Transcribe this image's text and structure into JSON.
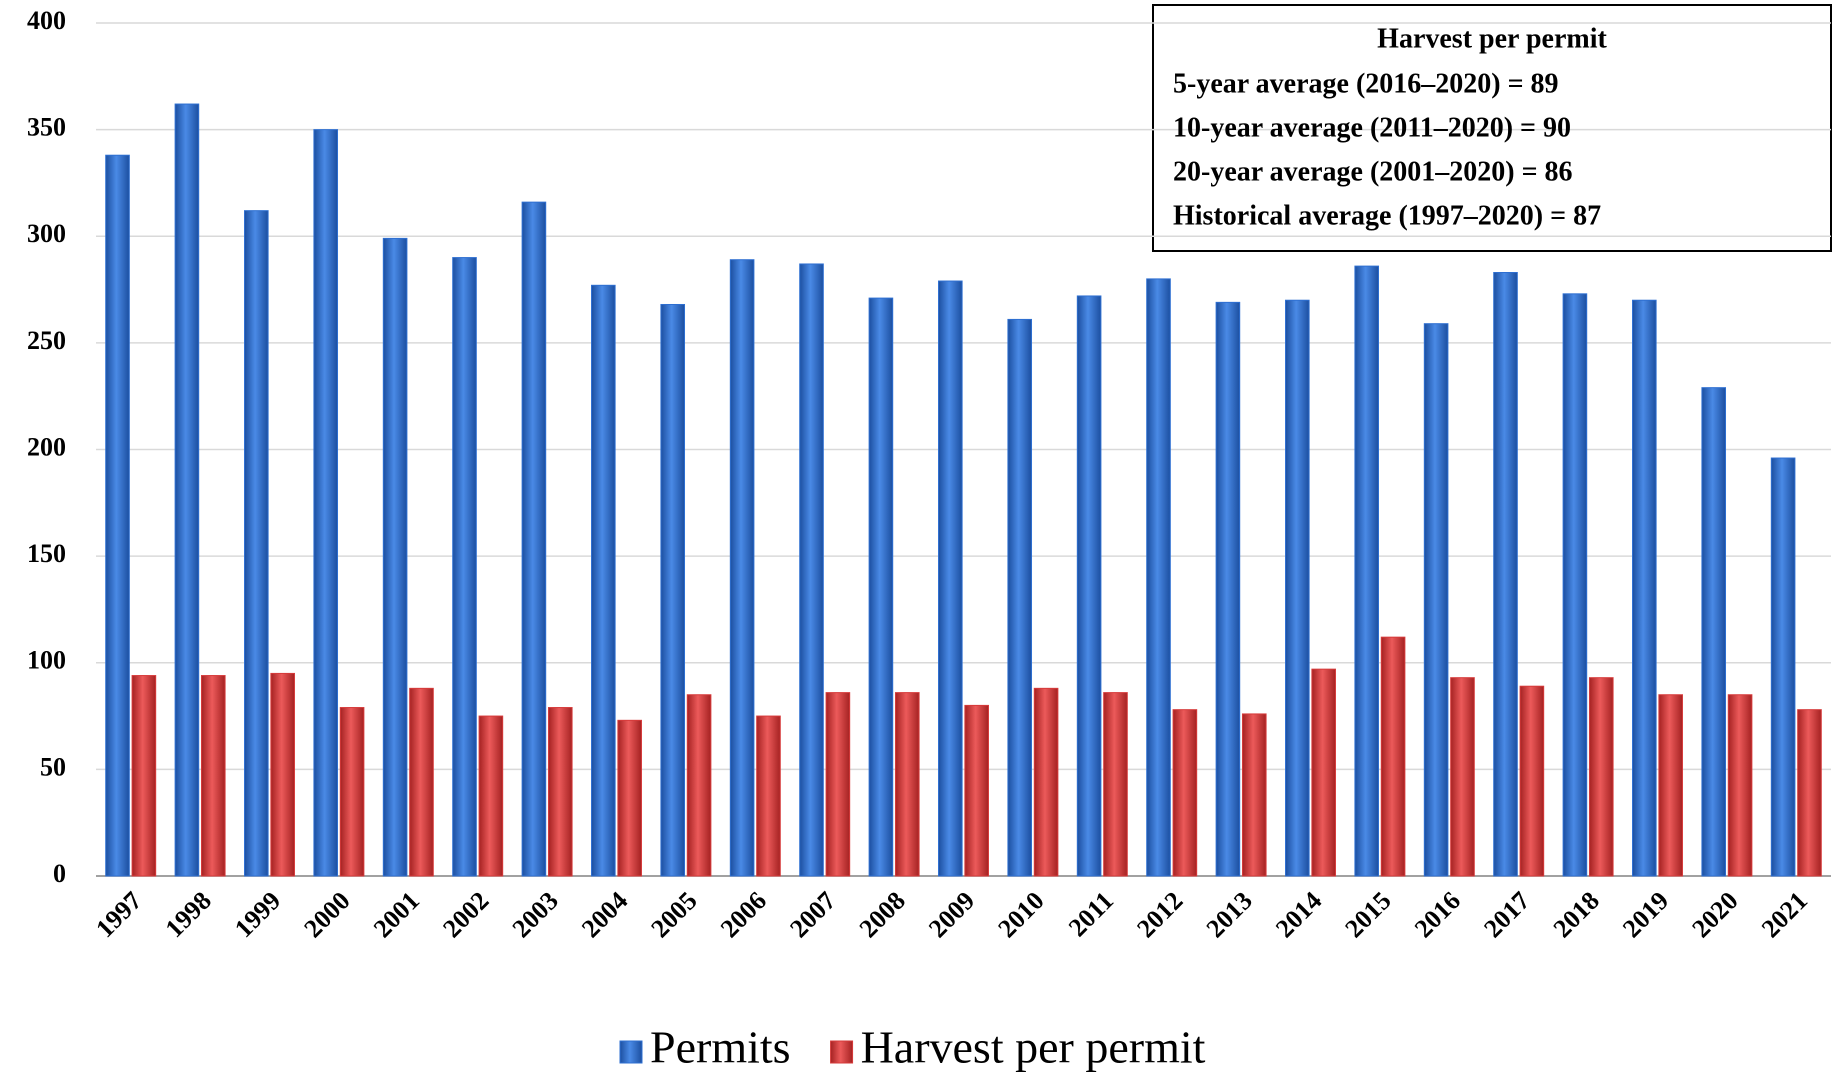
{
  "chart_data": {
    "type": "bar",
    "categories": [
      "1997",
      "1998",
      "1999",
      "2000",
      "2001",
      "2002",
      "2003",
      "2004",
      "2005",
      "2006",
      "2007",
      "2008",
      "2009",
      "2010",
      "2011",
      "2012",
      "2013",
      "2014",
      "2015",
      "2016",
      "2017",
      "2018",
      "2019",
      "2020",
      "2021"
    ],
    "series": [
      {
        "name": "Permits",
        "color": "#2e6fd1",
        "values": [
          338,
          362,
          312,
          350,
          299,
          290,
          316,
          277,
          268,
          289,
          287,
          271,
          279,
          261,
          272,
          280,
          269,
          270,
          286,
          259,
          283,
          273,
          270,
          229,
          196
        ]
      },
      {
        "name": "Harvest per permit",
        "color": "#d63a3a",
        "values": [
          94,
          94,
          95,
          79,
          88,
          75,
          79,
          73,
          85,
          75,
          86,
          86,
          80,
          88,
          86,
          78,
          76,
          97,
          112,
          93,
          89,
          93,
          85,
          85,
          78
        ]
      }
    ],
    "ylim": [
      0,
      400
    ],
    "yticks": [
      0,
      50,
      100,
      150,
      200,
      250,
      300,
      350,
      400
    ],
    "grid": true,
    "legend": "bottom",
    "annotation": {
      "title": "Harvest per permit",
      "lines": [
        "5-year average (2016–2020) = 89",
        "10-year average (2011–2020) = 90",
        "20-year average (2001–2020) = 86",
        "Historical average (1997–2020) = 87"
      ]
    }
  }
}
